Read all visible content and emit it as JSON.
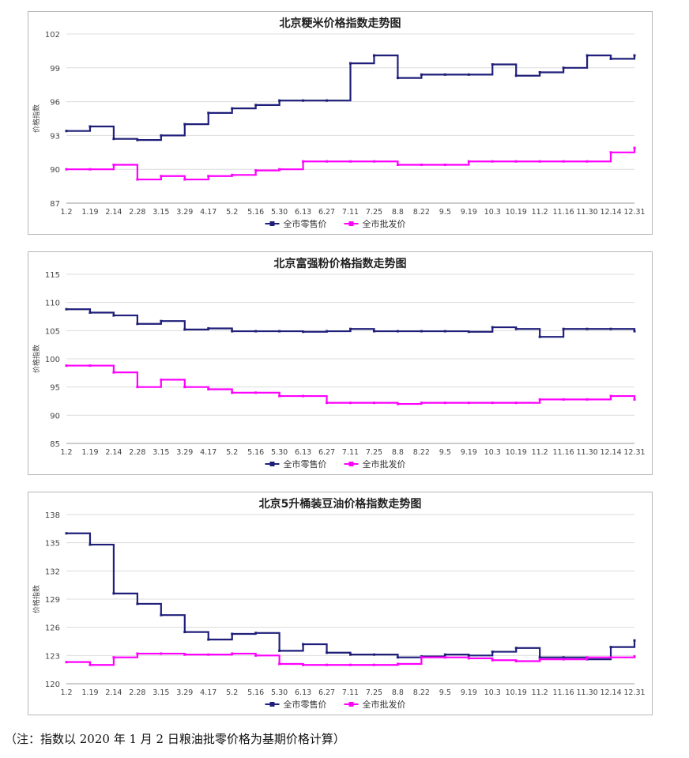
{
  "chart_data": [
    {
      "type": "line",
      "title": "北京粳米价格指数走势图",
      "ylabel": "价格指数",
      "ylim": [
        87,
        102
      ],
      "yticks": [
        "87",
        "90",
        "93",
        "96",
        "99",
        "102"
      ],
      "categories": [
        "1.2",
        "1.19",
        "2.14",
        "2.28",
        "3.15",
        "3.29",
        "4.17",
        "5.2",
        "5.16",
        "5.30",
        "6.13",
        "6.27",
        "7.11",
        "7.25",
        "8.8",
        "8.22",
        "9.5",
        "9.19",
        "10.3",
        "10.19",
        "11.2",
        "11.16",
        "11.30",
        "12.14",
        "12.31"
      ],
      "legend_position": "bottom",
      "series": [
        {
          "name": "全市零售价",
          "color": "#1f1f7a",
          "values": [
            93.4,
            93.8,
            92.7,
            92.6,
            93.0,
            94.0,
            95.0,
            95.4,
            95.7,
            96.1,
            96.1,
            96.1,
            99.4,
            100.1,
            98.1,
            98.4,
            98.4,
            98.4,
            99.3,
            98.3,
            98.6,
            99.0,
            100.1,
            99.8,
            100.1
          ]
        },
        {
          "name": "全市批发价",
          "color": "#ff00ff",
          "values": [
            90.0,
            90.0,
            90.4,
            89.1,
            89.4,
            89.1,
            89.4,
            89.5,
            89.9,
            90.0,
            90.7,
            90.7,
            90.7,
            90.7,
            90.4,
            90.4,
            90.4,
            90.7,
            90.7,
            90.7,
            90.7,
            90.7,
            90.7,
            91.5,
            91.9
          ]
        }
      ]
    },
    {
      "type": "line",
      "title": "北京富强粉价格指数走势图",
      "ylabel": "价格指数",
      "ylim": [
        85,
        115
      ],
      "yticks": [
        "85",
        "90",
        "95",
        "100",
        "105",
        "110",
        "115"
      ],
      "categories": [
        "1.2",
        "1.19",
        "2.14",
        "2.28",
        "3.15",
        "3.29",
        "4.17",
        "5.2",
        "5.16",
        "5.30",
        "6.13",
        "6.27",
        "7.11",
        "7.25",
        "8.8",
        "8.22",
        "9.5",
        "9.19",
        "10.3",
        "10.19",
        "11.2",
        "11.16",
        "11.30",
        "12.14",
        "12.31"
      ],
      "legend_position": "bottom",
      "series": [
        {
          "name": "全市零售价",
          "color": "#1f1f7a",
          "values": [
            108.8,
            108.2,
            107.7,
            106.2,
            106.7,
            105.2,
            105.4,
            104.9,
            104.9,
            104.9,
            104.8,
            104.9,
            105.3,
            104.9,
            104.9,
            104.9,
            104.9,
            104.8,
            105.6,
            105.3,
            103.9,
            105.3,
            105.3,
            105.3,
            104.9
          ]
        },
        {
          "name": "全市批发价",
          "color": "#ff00ff",
          "values": [
            98.8,
            98.8,
            97.6,
            95.0,
            96.3,
            95.0,
            94.6,
            94.0,
            94.0,
            93.4,
            93.4,
            92.2,
            92.2,
            92.2,
            92.0,
            92.2,
            92.2,
            92.2,
            92.2,
            92.2,
            92.8,
            92.8,
            92.8,
            93.4,
            92.8
          ]
        }
      ]
    },
    {
      "type": "line",
      "title": "北京5升桶装豆油价格指数走势图",
      "ylabel": "价格指数",
      "ylim": [
        120,
        138
      ],
      "yticks": [
        "120",
        "123",
        "126",
        "129",
        "132",
        "135",
        "138"
      ],
      "categories": [
        "1.2",
        "1.19",
        "2.14",
        "2.28",
        "3.15",
        "3.29",
        "4.17",
        "5.2",
        "5.16",
        "5.30",
        "6.13",
        "6.27",
        "7.11",
        "7.25",
        "8.8",
        "8.22",
        "9.5",
        "9.19",
        "10.3",
        "10.19",
        "11.2",
        "11.16",
        "11.30",
        "12.14",
        "12.31"
      ],
      "legend_position": "bottom",
      "series": [
        {
          "name": "全市零售价",
          "color": "#1f1f7a",
          "values": [
            136.0,
            134.8,
            129.6,
            128.5,
            127.3,
            125.5,
            124.7,
            125.3,
            125.4,
            123.5,
            124.2,
            123.3,
            123.1,
            123.1,
            122.8,
            122.9,
            123.1,
            123.0,
            123.4,
            123.8,
            122.8,
            122.8,
            122.6,
            123.9,
            124.6
          ]
        },
        {
          "name": "全市批发价",
          "color": "#ff00ff",
          "values": [
            122.3,
            122.0,
            122.8,
            123.2,
            123.2,
            123.1,
            123.1,
            123.2,
            123.0,
            122.1,
            122.0,
            122.0,
            122.0,
            122.0,
            122.1,
            122.8,
            122.8,
            122.7,
            122.5,
            122.4,
            122.6,
            122.6,
            122.8,
            122.8,
            122.9
          ]
        }
      ]
    }
  ],
  "footnote": "（注：指数以 2020 年 1 月 2 日粮油批零价格为基期价格计算）"
}
